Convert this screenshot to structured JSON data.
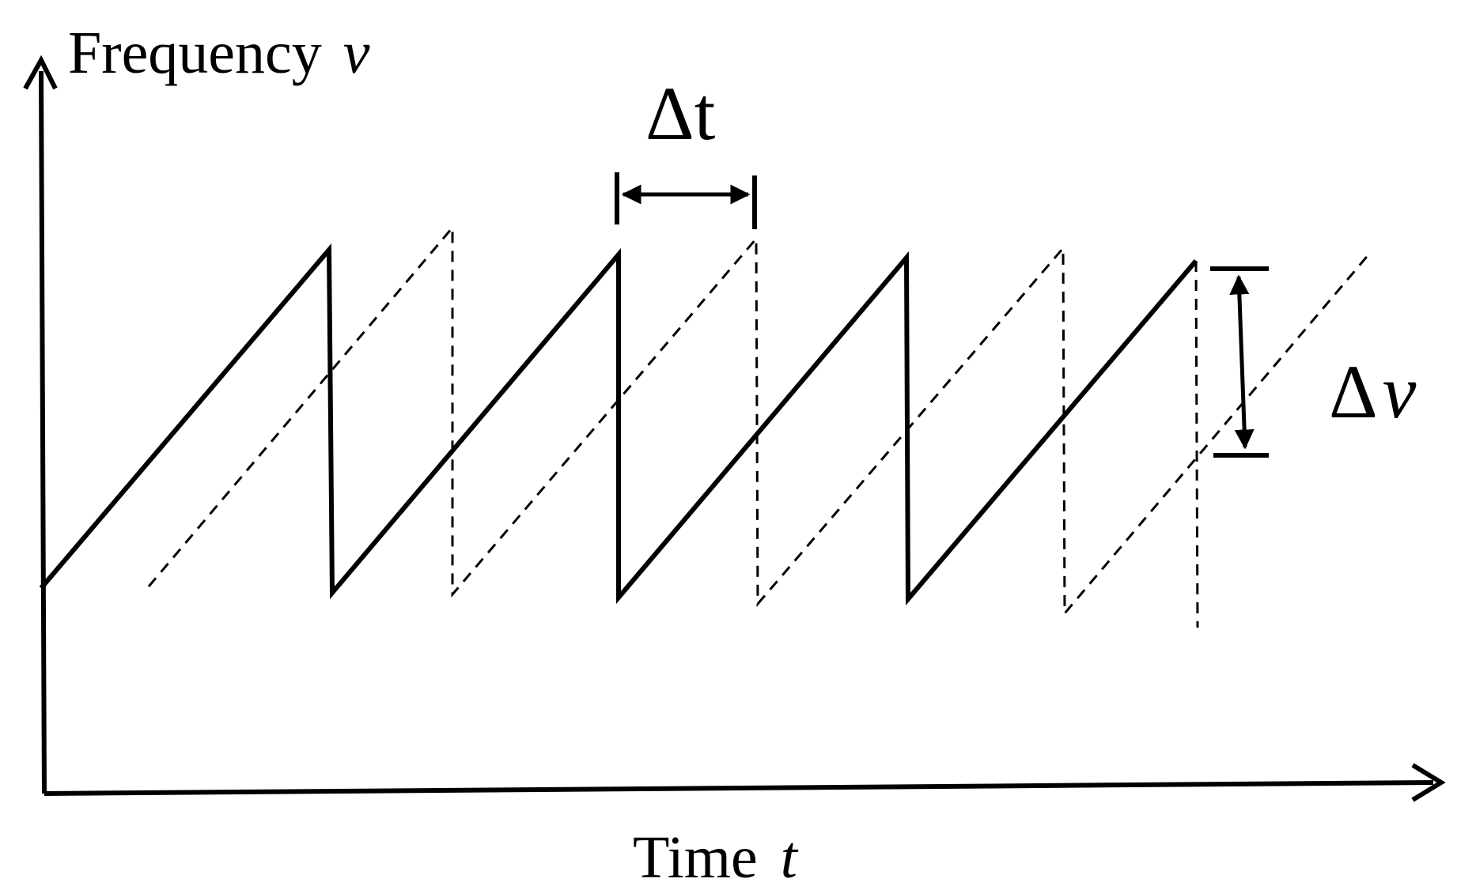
{
  "axes": {
    "y_label": "Frequency",
    "y_symbol": "ν",
    "x_label": "Time",
    "x_symbol": "t"
  },
  "annotations": {
    "delta_t_label": "Δt",
    "delta_nu_delta": "Δ",
    "delta_nu_symbol": "ν"
  },
  "colors": {
    "stroke": "#000000",
    "background": "#ffffff"
  }
}
